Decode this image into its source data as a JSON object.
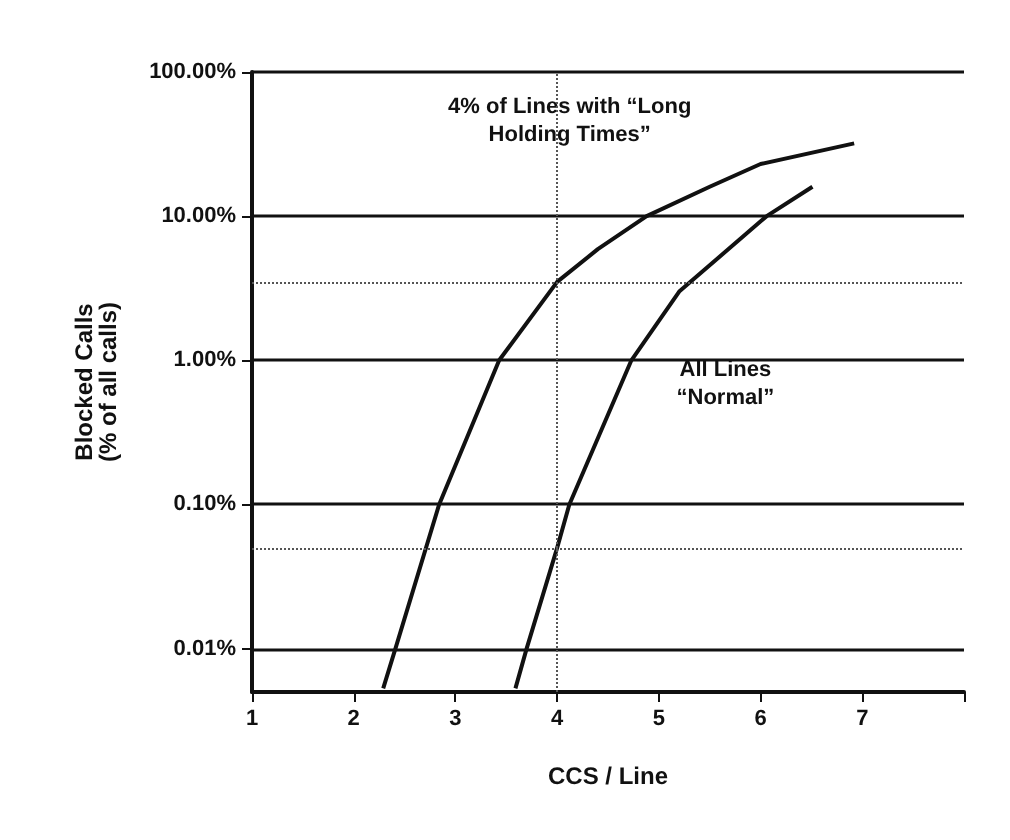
{
  "chart_data": {
    "type": "line",
    "xlabel": "CCS / Line",
    "ylabel": "Blocked Calls\n(% of all calls)",
    "log": "y",
    "grid": "y",
    "legend": false,
    "marker": "none",
    "line_style": "solid",
    "xlim": [
      1,
      8
    ],
    "ylim": [
      0.005,
      100
    ],
    "xticks": [
      1,
      2,
      3,
      4,
      5,
      6,
      7,
      {
        "value": 8,
        "label": null
      }
    ],
    "yticks": [
      {
        "value": 0.01,
        "label": "0.01%"
      },
      {
        "value": 0.1,
        "label": "0.10%"
      },
      {
        "value": 1,
        "label": "1.00%"
      },
      {
        "value": 10,
        "label": "10.00%"
      },
      {
        "value": 100,
        "label": "100.00%"
      }
    ],
    "series": [
      {
        "name": "4% of Lines with “Long Holding Times”",
        "color": "#111111",
        "x": [
          2.29,
          2.41,
          2.84,
          3.43,
          4.0,
          4.4,
          4.88,
          5.5,
          6.0,
          6.92
        ],
        "values": [
          0.0053,
          0.01,
          0.1,
          1,
          3.5,
          5.9,
          10,
          16,
          23,
          32
        ]
      },
      {
        "name": "All Lines “Normal”",
        "color": "#111111",
        "x": [
          3.59,
          3.7,
          4.0,
          4.12,
          4.73,
          5.2,
          6.06,
          6.51
        ],
        "values": [
          0.0053,
          0.01,
          0.05,
          0.1,
          1,
          3,
          10,
          16
        ]
      }
    ],
    "ref_lines": [
      {
        "axis": "y",
        "value": 3.5,
        "line_style": "dotted",
        "color": "#555555"
      },
      {
        "axis": "y",
        "value": 0.05,
        "line_style": "dotted",
        "color": "#555555"
      },
      {
        "axis": "x",
        "value": 4,
        "line_style": "dotted",
        "color": "#555555"
      }
    ]
  }
}
